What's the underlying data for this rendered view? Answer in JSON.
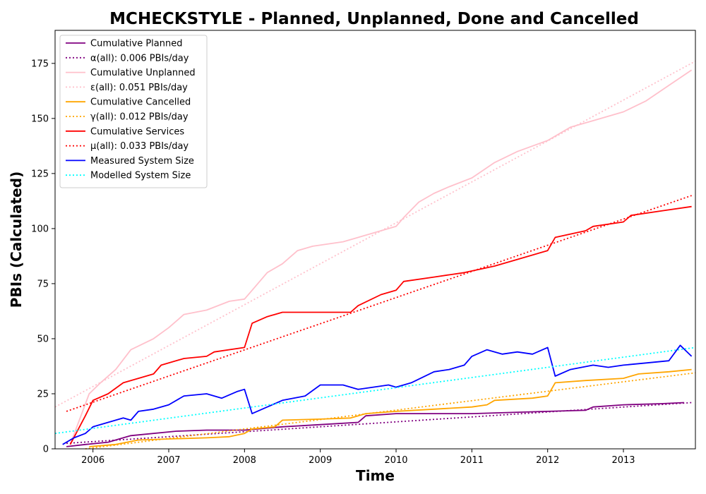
{
  "chart_data": {
    "type": "line",
    "title": "MCHECKSTYLE - Planned, Unplanned, Done  and Cancelled",
    "xlabel": "Time",
    "ylabel": "PBIs (Calculated)",
    "xlim": [
      2005.5,
      2013.95
    ],
    "ylim": [
      0,
      190
    ],
    "x_ticks": [
      2006,
      2007,
      2008,
      2009,
      2010,
      2011,
      2012,
      2013
    ],
    "x_tick_labels": [
      "2006",
      "2007",
      "2008",
      "2009",
      "2010",
      "2011",
      "2012",
      "2013"
    ],
    "y_ticks": [
      0,
      25,
      50,
      75,
      100,
      125,
      150,
      175
    ],
    "y_tick_labels": [
      "0",
      "25",
      "50",
      "75",
      "100",
      "125",
      "150",
      "175"
    ],
    "legend_position": "upper-left",
    "grid": false,
    "series": [
      {
        "name": "Cumulative Planned",
        "color": "#800080",
        "style": "solid",
        "x": [
          2005.65,
          2005.9,
          2006.2,
          2006.5,
          2007.1,
          2007.5,
          2008.0,
          2008.5,
          2009.0,
          2009.5,
          2009.6,
          2010.0,
          2010.5,
          2011.0,
          2011.5,
          2012.0,
          2012.5,
          2012.6,
          2013.0,
          2013.5,
          2013.8
        ],
        "y": [
          1,
          2,
          3,
          6,
          8,
          8.5,
          8.5,
          10,
          11,
          12,
          15,
          16,
          16,
          16,
          16.5,
          17,
          17.5,
          19,
          20,
          20.5,
          21
        ]
      },
      {
        "name": "α(all): 0.006 PBIs/day",
        "color": "#800080",
        "style": "dotted",
        "x": [
          2005.65,
          2013.9
        ],
        "y": [
          2.5,
          21
        ]
      },
      {
        "name": "Cumulative Unplanned",
        "color": "#ffc0cb",
        "style": "solid",
        "x": [
          2005.7,
          2005.95,
          2006.1,
          2006.3,
          2006.5,
          2006.8,
          2007.0,
          2007.2,
          2007.5,
          2007.8,
          2008.0,
          2008.1,
          2008.3,
          2008.5,
          2008.7,
          2008.9,
          2009.3,
          2009.6,
          2010.0,
          2010.1,
          2010.3,
          2010.5,
          2010.7,
          2011.0,
          2011.3,
          2011.6,
          2012.0,
          2012.3,
          2012.6,
          2013.0,
          2013.3,
          2013.6,
          2013.9
        ],
        "y": [
          2,
          25,
          30,
          36,
          45,
          50,
          55,
          61,
          63,
          67,
          68,
          72,
          80,
          84,
          90,
          92,
          94,
          97,
          101,
          105,
          112,
          116,
          119,
          123,
          130,
          135,
          140,
          146,
          149,
          153,
          158,
          165,
          172
        ]
      },
      {
        "name": "ε(all): 0.051 PBIs/day",
        "color": "#ffc0cb",
        "style": "dotted",
        "x": [
          2005.5,
          2013.95
        ],
        "y": [
          19,
          176
        ]
      },
      {
        "name": "Cumulative Cancelled",
        "color": "#ffa500",
        "style": "solid",
        "x": [
          2005.95,
          2006.3,
          2006.6,
          2007.0,
          2007.5,
          2007.8,
          2008.0,
          2008.1,
          2008.4,
          2008.5,
          2009.0,
          2009.4,
          2009.5,
          2009.6,
          2010.0,
          2010.5,
          2011.0,
          2011.2,
          2011.3,
          2011.8,
          2012.0,
          2012.1,
          2012.5,
          2013.0,
          2013.2,
          2013.6,
          2013.9
        ],
        "y": [
          1,
          2,
          4,
          4.5,
          5,
          5.5,
          7,
          9,
          10,
          13,
          13.5,
          14,
          15,
          16,
          17,
          18,
          19,
          20,
          22,
          23,
          24,
          30,
          31,
          32,
          34,
          35,
          36
        ]
      },
      {
        "name": "γ(all): 0.012 PBIs/day",
        "color": "#ffa500",
        "style": "dotted",
        "x": [
          2005.9,
          2013.95
        ],
        "y": [
          0,
          34.5
        ]
      },
      {
        "name": "Cumulative Services",
        "color": "#ff0000",
        "style": "solid",
        "x": [
          2005.7,
          2005.9,
          2006.0,
          2006.2,
          2006.4,
          2006.6,
          2006.8,
          2006.9,
          2007.2,
          2007.5,
          2007.6,
          2008.0,
          2008.1,
          2008.3,
          2008.4,
          2008.5,
          2009.0,
          2009.4,
          2009.5,
          2009.8,
          2010.0,
          2010.1,
          2010.5,
          2010.9,
          2011.3,
          2011.6,
          2012.0,
          2012.1,
          2012.5,
          2012.6,
          2013.0,
          2013.1,
          2013.5,
          2013.9
        ],
        "y": [
          2,
          15,
          22,
          25,
          30,
          32,
          34,
          38,
          41,
          42,
          44,
          46,
          57,
          60,
          61,
          62,
          62,
          62,
          65,
          70,
          72,
          76,
          78,
          80,
          83,
          86,
          90,
          96,
          99,
          101,
          103,
          106,
          108,
          110
        ]
      },
      {
        "name": "μ(all): 0.033 PBIs/day",
        "color": "#ff0000",
        "style": "dotted",
        "x": [
          2005.65,
          2013.9
        ],
        "y": [
          17,
          115
        ]
      },
      {
        "name": "Measured System Size",
        "color": "#0000ff",
        "style": "solid",
        "x": [
          2005.6,
          2005.75,
          2005.9,
          2006.0,
          2006.2,
          2006.4,
          2006.5,
          2006.6,
          2006.8,
          2007.0,
          2007.2,
          2007.5,
          2007.7,
          2007.9,
          2008.0,
          2008.1,
          2008.3,
          2008.5,
          2008.8,
          2009.0,
          2009.3,
          2009.5,
          2009.7,
          2009.9,
          2010.0,
          2010.2,
          2010.5,
          2010.7,
          2010.9,
          2011.0,
          2011.2,
          2011.4,
          2011.6,
          2011.8,
          2012.0,
          2012.1,
          2012.3,
          2012.6,
          2012.8,
          2013.0,
          2013.3,
          2013.6,
          2013.75,
          2013.9
        ],
        "y": [
          2,
          5,
          7,
          10,
          12,
          14,
          13,
          17,
          18,
          20,
          24,
          25,
          23,
          26,
          27,
          16,
          19,
          22,
          24,
          29,
          29,
          27,
          28,
          29,
          28,
          30,
          35,
          36,
          38,
          42,
          45,
          43,
          44,
          43,
          46,
          33,
          36,
          38,
          37,
          38,
          39,
          40,
          47,
          42
        ]
      },
      {
        "name": "Modelled System Size",
        "color": "#00ffff",
        "style": "dotted",
        "x": [
          2005.5,
          2013.95
        ],
        "y": [
          7,
          46
        ]
      }
    ]
  }
}
